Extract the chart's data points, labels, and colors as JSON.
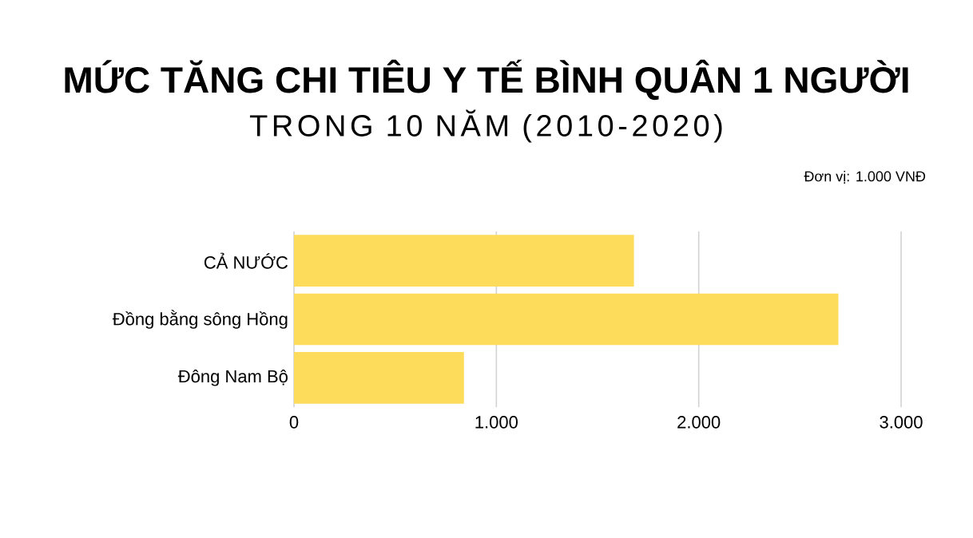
{
  "chart_data": {
    "type": "bar",
    "orientation": "horizontal",
    "title": "MỨC TĂNG CHI TIÊU Y TẾ BÌNH QUÂN 1 NGƯỜI",
    "subtitle": "TRONG 10 NĂM (2010-2020)",
    "annotations": [
      "Đơn vị: 1.000 VNĐ"
    ],
    "categories": [
      "CẢ NƯỚC",
      "Đồng bằng sông Hồng",
      "Đông Nam Bộ"
    ],
    "values": [
      1680,
      2690,
      840
    ],
    "color": "#fddc5c",
    "xlim": [
      0,
      3000
    ],
    "xticks": [
      0,
      {
        "value": 1000,
        "label": "1.000"
      },
      {
        "value": 2000,
        "label": "2.000"
      },
      {
        "value": 3000,
        "label": "3.000"
      }
    ],
    "grid": "x"
  }
}
